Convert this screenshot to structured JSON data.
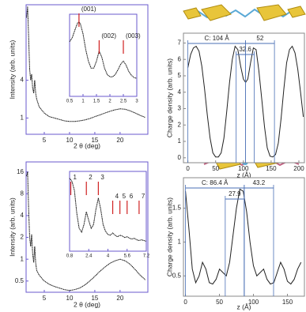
{
  "chart_data": [
    {
      "type": "line",
      "xlabel": "2 θ (deg)",
      "ylabel": "Intensity (arb. units)",
      "log_y": true,
      "frame_color": "#6a5acd",
      "xlim": [
        1.4,
        25.5
      ],
      "ylim": [
        0.55,
        64
      ],
      "xticks": [
        5,
        10,
        15,
        20
      ],
      "yticks": [
        1,
        4
      ],
      "series": [
        {
          "color": "#000000",
          "x": [
            1.5,
            1.7,
            1.9,
            2.1,
            2.3,
            2.5,
            2.7,
            2.9,
            3.1,
            3.3,
            3.5,
            4,
            5,
            6,
            7,
            8,
            9,
            10,
            11,
            12,
            13,
            14,
            15,
            16,
            17,
            18,
            19,
            20,
            21,
            22,
            23,
            24,
            25
          ],
          "values": [
            40,
            60,
            20,
            6,
            4,
            5,
            3,
            2.5,
            4,
            2.5,
            2,
            1.5,
            1.2,
            1.05,
            1.0,
            0.95,
            0.9,
            0.88,
            0.88,
            0.9,
            0.93,
            0.98,
            1.05,
            1.12,
            1.2,
            1.28,
            1.35,
            1.4,
            1.38,
            1.3,
            1.2,
            1.1,
            1.02
          ]
        }
      ]
    },
    {
      "type": "line",
      "frame_color": "#6a5acd",
      "xlim": [
        0.5,
        3
      ],
      "ylim": [
        0,
        10.5
      ],
      "xticks": [
        0.5,
        1,
        1.5,
        2,
        2.5,
        3
      ],
      "series": [
        {
          "color": "#000000",
          "x": [
            0.5,
            0.6,
            0.7,
            0.8,
            0.85,
            0.9,
            1.0,
            1.1,
            1.2,
            1.3,
            1.4,
            1.5,
            1.6,
            1.7,
            1.8,
            1.9,
            2.0,
            2.1,
            2.2,
            2.3,
            2.4,
            2.5,
            2.6,
            2.7,
            2.8,
            2.9,
            3.0
          ],
          "values": [
            7,
            7.5,
            8.5,
            9.4,
            9.5,
            9.3,
            8,
            6,
            4.5,
            3.6,
            3.6,
            4.5,
            5.8,
            5,
            3.6,
            2.8,
            2.5,
            2.5,
            2.8,
            3.4,
            4.1,
            4.5,
            4,
            3.2,
            2.7,
            2.4,
            2.3
          ]
        }
      ],
      "markers": [
        {
          "label": "(001)",
          "x": 0.85
        },
        {
          "label": "(002)",
          "x": 1.6
        },
        {
          "label": "(003)",
          "x": 2.5
        }
      ]
    },
    {
      "type": "line",
      "xlabel": "z (Å)",
      "ylabel": "Charge density (arb. units)",
      "frame_color": "#888888",
      "xlim": [
        -8,
        210
      ],
      "ylim": [
        -0.3,
        7.6
      ],
      "xticks": [
        0,
        50,
        100,
        150,
        200
      ],
      "yticks": [
        0,
        1,
        2,
        3,
        4,
        5,
        6,
        7
      ],
      "series": [
        {
          "color": "#222222",
          "x": [
            0,
            5,
            10,
            15,
            20,
            25,
            30,
            35,
            40,
            45,
            50,
            55,
            60,
            65,
            70,
            75,
            80,
            85,
            90,
            95,
            100,
            104,
            108,
            113,
            118,
            123,
            128,
            133,
            138,
            143,
            148,
            153,
            158,
            163,
            168,
            173,
            178,
            183,
            188,
            193,
            198,
            203,
            208
          ],
          "values": [
            5.5,
            6.3,
            6.7,
            6.8,
            6.5,
            5.6,
            4.2,
            2.6,
            1.2,
            0.3,
            0.05,
            0.05,
            0.3,
            1.2,
            2.8,
            4.6,
            6.0,
            6.8,
            6.6,
            5.6,
            4.8,
            4.6,
            4.8,
            5.8,
            6.7,
            6.6,
            5.3,
            3.6,
            1.9,
            0.6,
            0.1,
            0.05,
            0.2,
            0.9,
            2.4,
            4.2,
            5.8,
            6.6,
            6.8,
            6.4,
            5.4,
            4.0,
            2.5
          ]
        }
      ],
      "dimensions": [
        {
          "label": "C: 104 Å",
          "from": 0,
          "to": 104
        },
        {
          "label": "32.6",
          "from": 87,
          "to": 119.6
        },
        {
          "label": "52",
          "from": 104,
          "to": 156
        }
      ]
    },
    {
      "type": "line",
      "xlabel": "2 θ (deg)",
      "ylabel": "Intensity (arb. units)",
      "log_y": true,
      "frame_color": "#6a5acd",
      "xlim": [
        1.4,
        25.5
      ],
      "ylim": [
        0.35,
        22
      ],
      "xticks": [
        5,
        10,
        15,
        20
      ],
      "yticks": [
        0.5,
        1,
        2,
        4,
        8,
        16
      ],
      "series": [
        {
          "color": "#000000",
          "x": [
            1.5,
            1.7,
            1.9,
            2.1,
            2.3,
            2.5,
            2.7,
            2.9,
            3.1,
            3.3,
            3.5,
            4,
            5,
            6,
            7,
            8,
            9,
            10,
            11,
            12,
            13,
            14,
            15,
            16,
            17,
            18,
            19,
            20,
            21,
            22,
            23,
            24,
            25
          ],
          "values": [
            14,
            16,
            5,
            2,
            1.5,
            2.2,
            1.2,
            0.9,
            1.5,
            0.9,
            0.7,
            0.6,
            0.5,
            0.45,
            0.42,
            0.4,
            0.38,
            0.37,
            0.38,
            0.4,
            0.44,
            0.5,
            0.58,
            0.68,
            0.78,
            0.88,
            0.95,
            1.0,
            0.95,
            0.85,
            0.72,
            0.6,
            0.52
          ]
        }
      ]
    },
    {
      "type": "line",
      "frame_color": "#6a5acd",
      "xlim": [
        0.8,
        7.2
      ],
      "ylim": [
        0,
        10.5
      ],
      "xticks": [
        0.8,
        2.4,
        4,
        5.6,
        7.2
      ],
      "series": [
        {
          "color": "#000000",
          "x": [
            0.8,
            1.0,
            1.2,
            1.4,
            1.6,
            1.8,
            2.0,
            2.2,
            2.4,
            2.6,
            2.8,
            3.0,
            3.2,
            3.4,
            3.6,
            3.8,
            4.0,
            4.2,
            4.4,
            4.6,
            4.8,
            5.0,
            5.2,
            5.4,
            5.6,
            5.8,
            6.0,
            6.2,
            6.4,
            6.6,
            6.8,
            7.0,
            7.2
          ],
          "values": [
            9.6,
            9.2,
            8,
            5,
            3,
            2.5,
            3.5,
            5.2,
            4,
            3,
            3.5,
            5.5,
            7,
            5.5,
            3.5,
            2.6,
            2.2,
            2.1,
            2.4,
            2.1,
            1.9,
            2.1,
            2.0,
            1.8,
            1.9,
            1.7,
            1.6,
            1.7,
            1.5,
            1.4,
            1.5,
            1.4,
            1.3
          ]
        }
      ],
      "markers": [
        {
          "label": "1",
          "x": 0.9
        },
        {
          "label": "2",
          "x": 2.2
        },
        {
          "label": "3",
          "x": 3.2
        },
        {
          "label": "4",
          "x": 4.4
        },
        {
          "label": "5",
          "x": 5.0
        },
        {
          "label": "6",
          "x": 5.6
        },
        {
          "label": "7",
          "x": 6.6
        }
      ]
    },
    {
      "type": "line",
      "xlabel": "z (Å)",
      "ylabel": "Charge density (arb. units)",
      "frame_color": "#888888",
      "xlim": [
        -3,
        175
      ],
      "ylim": [
        0.2,
        1.95
      ],
      "xticks": [
        0,
        50,
        100,
        150
      ],
      "yticks": [
        0.5,
        1,
        1.5
      ],
      "series": [
        {
          "color": "#222222",
          "x": [
            0,
            5,
            10,
            15,
            20,
            25,
            30,
            35,
            40,
            45,
            50,
            55,
            60,
            65,
            70,
            75,
            80,
            85,
            90,
            95,
            100,
            105,
            110,
            115,
            120,
            125,
            130,
            135,
            140,
            145,
            150,
            155,
            160,
            165,
            170
          ],
          "values": [
            1.75,
            1.2,
            0.6,
            0.4,
            0.5,
            0.7,
            0.6,
            0.4,
            0.38,
            0.45,
            0.6,
            0.55,
            0.5,
            0.7,
            1.1,
            1.5,
            1.78,
            1.75,
            1.45,
            1.0,
            0.65,
            0.5,
            0.55,
            0.6,
            0.45,
            0.38,
            0.4,
            0.55,
            0.7,
            0.6,
            0.42,
            0.38,
            0.45,
            0.6,
            0.7
          ]
        }
      ],
      "dimensions": [
        {
          "label": "C: 86.4 Å",
          "from": 0,
          "to": 86.4
        },
        {
          "label": "27.9",
          "from": 58.5,
          "to": 86.4
        },
        {
          "label": "43.2",
          "from": 86.4,
          "to": 129.6
        }
      ]
    }
  ]
}
